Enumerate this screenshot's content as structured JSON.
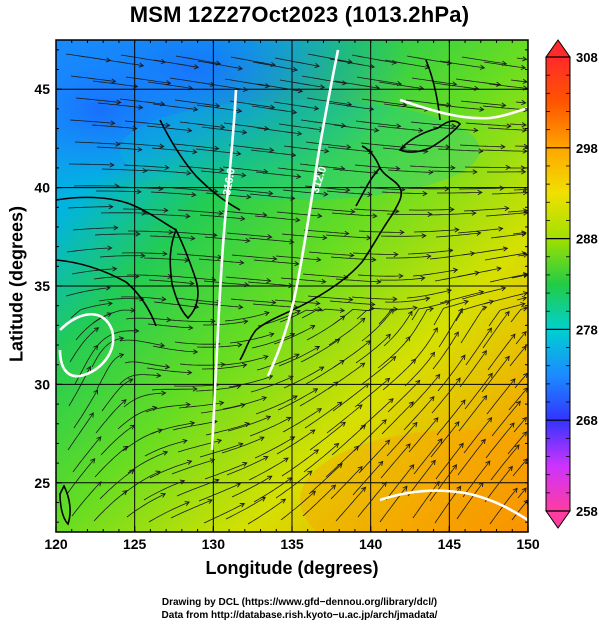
{
  "title": "MSM 12Z27Oct2023 (1013.2hPa)",
  "axes": {
    "xlabel": "Longitude (degrees)",
    "ylabel": "Latitude  (degrees)",
    "xlim": [
      120,
      150
    ],
    "ylim": [
      22.5,
      47.5
    ],
    "xticks": [
      "120",
      "125",
      "130",
      "135",
      "140",
      "145",
      "150"
    ],
    "yticks": [
      "25",
      "30",
      "35",
      "40",
      "45"
    ]
  },
  "contours": [
    {
      "label": "316.0",
      "color": "#ffffff"
    },
    {
      "label": "312.0",
      "color": "#ffffff"
    }
  ],
  "colorbar": {
    "min": 258,
    "max": 308,
    "ticks": [
      "258",
      "268",
      "278",
      "288",
      "298",
      "308"
    ],
    "colors": [
      "#ff3ca0",
      "#cc33ff",
      "#3333ff",
      "#1a8cff",
      "#00d0d0",
      "#22cc44",
      "#a0e000",
      "#f0e000",
      "#ffa500",
      "#ff5500",
      "#ff2a2a"
    ]
  },
  "credits": {
    "line1": "Drawing by DCL (https://www.gfd−dennou.org/library/dcl/)",
    "line2": "Data from http://database.rish.kyoto−u.ac.jp/arch/jmadata/"
  }
}
